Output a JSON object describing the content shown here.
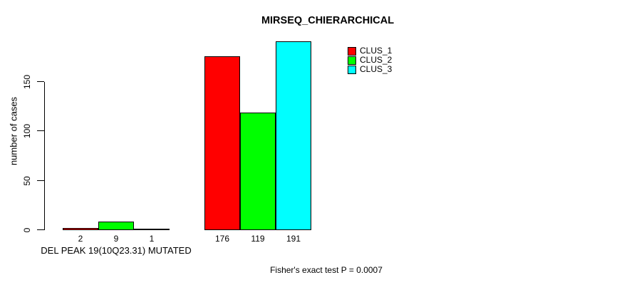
{
  "chart_data": {
    "type": "bar",
    "title": "MIRSEQ_CHIERARCHICAL",
    "ylabel": "number of cases",
    "xlabel": "DEL PEAK 19(10Q23.31) MUTATED",
    "annotation": "Fisher's exact test P = 0.0007",
    "yticks": [
      0,
      50,
      100,
      150
    ],
    "ylim": [
      0,
      191
    ],
    "grid": false,
    "legend_position": "top-right",
    "background_color": "#ffffff",
    "bar_outline_color": "#000000",
    "group_count": 2,
    "series": [
      {
        "name": "CLUS_1",
        "color": "#FF0000",
        "values": [
          2,
          176
        ]
      },
      {
        "name": "CLUS_2",
        "color": "#00FF00",
        "values": [
          9,
          119
        ]
      },
      {
        "name": "CLUS_3",
        "color": "#00FFFF",
        "values": [
          1,
          191
        ]
      }
    ]
  }
}
